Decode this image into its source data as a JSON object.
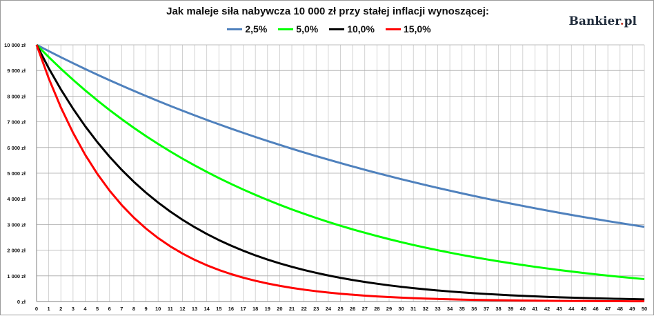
{
  "chart_data": {
    "type": "line",
    "title": "Jak maleje siła nabywcza 10 000 zł przy stałej inflacji wynoszącej:",
    "xlabel": "",
    "ylabel": "",
    "x": [
      0,
      1,
      2,
      3,
      4,
      5,
      6,
      7,
      8,
      9,
      10,
      11,
      12,
      13,
      14,
      15,
      16,
      17,
      18,
      19,
      20,
      21,
      22,
      23,
      24,
      25,
      26,
      27,
      28,
      29,
      30,
      31,
      32,
      33,
      34,
      35,
      36,
      37,
      38,
      39,
      40,
      41,
      42,
      43,
      44,
      45,
      46,
      47,
      48,
      49,
      50
    ],
    "xlim": [
      0,
      50
    ],
    "ylim": [
      0,
      10000
    ],
    "yticks": [
      0,
      1000,
      2000,
      3000,
      4000,
      5000,
      6000,
      7000,
      8000,
      9000,
      10000
    ],
    "ytick_labels": [
      "0 zł",
      "1 000 zł",
      "2 000 zł",
      "3 000 zł",
      "4 000 zł",
      "5 000 zł",
      "6 000 zł",
      "7 000 zł",
      "8 000 zł",
      "9 000 zł",
      "10 000 zł"
    ],
    "grid": true,
    "legend_position": "top",
    "formula_note_hidden": true,
    "series": [
      {
        "name": "2,5%",
        "rate": 0.025,
        "color": "#4f81bd"
      },
      {
        "name": "5,0%",
        "rate": 0.05,
        "color": "#00ff00"
      },
      {
        "name": "10,0%",
        "rate": 0.1,
        "color": "#000000"
      },
      {
        "name": "15,0%",
        "rate": 0.15,
        "color": "#ff0000"
      }
    ],
    "initial_value": 10000
  },
  "brand": {
    "name": "Bankier",
    "suffix": "pl",
    "dot": "."
  }
}
